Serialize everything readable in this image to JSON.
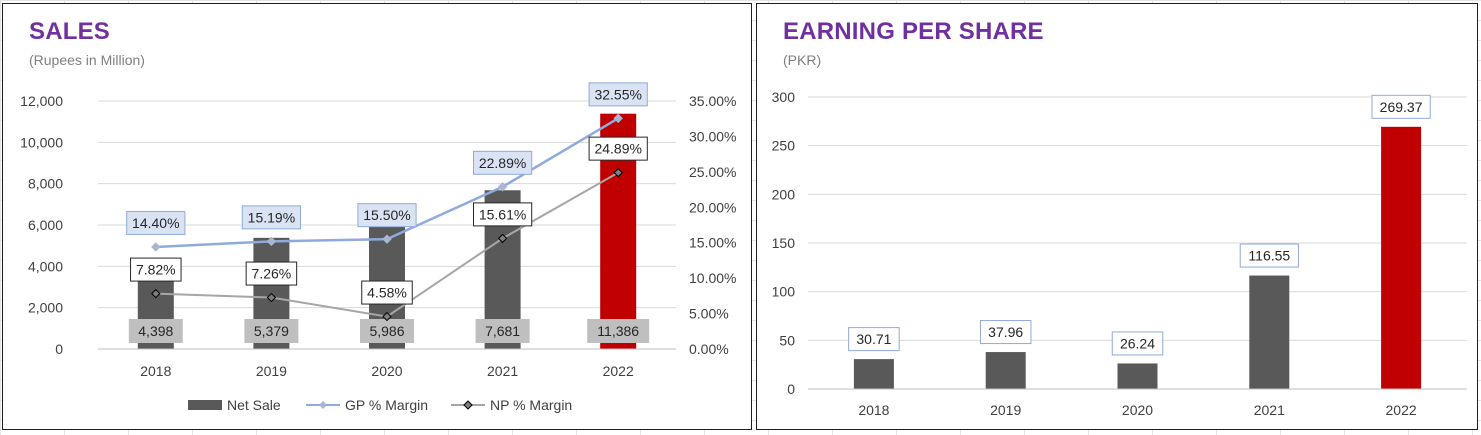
{
  "charts": [
    {
      "title": "SALES",
      "subtitle": "(Rupees in Million)",
      "chart_data": {
        "type": "bar",
        "categories": [
          "2018",
          "2019",
          "2020",
          "2021",
          "2022"
        ],
        "series": [
          {
            "name": "Net Sale",
            "type": "bar",
            "axis": "left",
            "values": [
              4398,
              5379,
              5986,
              7681,
              11386
            ],
            "labels": [
              "4,398",
              "5,379",
              "5,986",
              "7,681",
              "11,386"
            ],
            "colors": [
              "#595959",
              "#595959",
              "#595959",
              "#595959",
              "#c00000"
            ]
          },
          {
            "name": "GP % Margin",
            "type": "line",
            "axis": "right",
            "color": "#8faadc",
            "values": [
              14.4,
              15.19,
              15.5,
              22.89,
              32.55
            ],
            "labels": [
              "14.40%",
              "15.19%",
              "15.50%",
              "22.89%",
              "32.55%"
            ]
          },
          {
            "name": "NP % Margin",
            "type": "line",
            "axis": "right",
            "color": "#a6a6a6",
            "values": [
              7.82,
              7.26,
              4.58,
              15.61,
              24.89
            ],
            "labels": [
              "7.82%",
              "7.26%",
              "4.58%",
              "15.61%",
              "24.89%"
            ]
          }
        ],
        "ylim": [
          0,
          12000
        ],
        "yticks": [
          "12,000",
          "10,000",
          "8,000",
          "6,000",
          "4,000",
          "2,000",
          "0"
        ],
        "y2lim": [
          0,
          35
        ],
        "y2ticks": [
          "35.00%",
          "30.00%",
          "25.00%",
          "20.00%",
          "15.00%",
          "10.00%",
          "5.00%",
          "0.00%"
        ],
        "grid": true,
        "legend": "bottom"
      }
    },
    {
      "title": "EARNING PER SHARE",
      "subtitle": "(PKR)",
      "chart_data": {
        "type": "bar",
        "categories": [
          "2018",
          "2019",
          "2020",
          "2021",
          "2022"
        ],
        "values": [
          30.71,
          37.96,
          26.24,
          116.55,
          269.37
        ],
        "labels": [
          "30.71",
          "37.96",
          "26.24",
          "116.55",
          "269.37"
        ],
        "colors": [
          "#595959",
          "#595959",
          "#595959",
          "#595959",
          "#c00000"
        ],
        "ylim": [
          0,
          300
        ],
        "yticks": [
          "300",
          "250",
          "200",
          "150",
          "100",
          "50",
          "0"
        ],
        "grid": true
      }
    }
  ]
}
